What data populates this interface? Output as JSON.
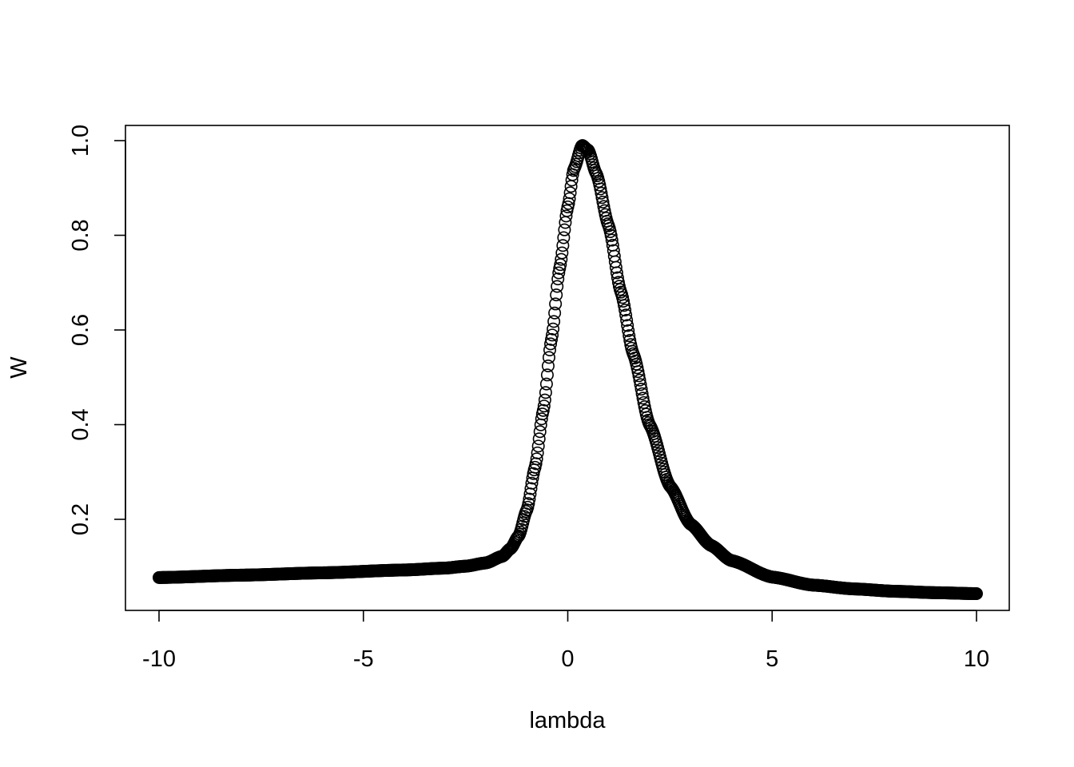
{
  "chart_data": {
    "type": "scatter",
    "title": "",
    "xlabel": "lambda",
    "ylabel": "W",
    "xlim": [
      -10,
      10
    ],
    "ylim": [
      0.02,
      1.03
    ],
    "grid": false,
    "legend": "none",
    "xticks": [
      -10,
      -5,
      0,
      5,
      10
    ],
    "xtick_labels": [
      "-10",
      "-5",
      "0",
      "5",
      "10"
    ],
    "yticks": [
      0.2,
      0.4,
      0.6,
      0.8,
      1.0
    ],
    "ytick_labels": [
      "0.2",
      "0.4",
      "0.6",
      "0.8",
      "1.0"
    ],
    "series": [
      {
        "marker": "open-circle",
        "color": "#000000",
        "x_range": [
          -10,
          10
        ],
        "n_points": 1001,
        "points": [
          [
            -10,
            0.077
          ],
          [
            -8,
            0.082
          ],
          [
            -6,
            0.087
          ],
          [
            -4,
            0.093
          ],
          [
            -3,
            0.097
          ],
          [
            -2.5,
            0.101
          ],
          [
            -2,
            0.108
          ],
          [
            -1.6,
            0.122
          ],
          [
            -1.4,
            0.138
          ],
          [
            -1.2,
            0.165
          ],
          [
            -1.0,
            0.22
          ],
          [
            -0.8,
            0.31
          ],
          [
            -0.6,
            0.43
          ],
          [
            -0.4,
            0.58
          ],
          [
            -0.2,
            0.73
          ],
          [
            0,
            0.86
          ],
          [
            0.15,
            0.94
          ],
          [
            0.35,
            0.99
          ],
          [
            0.5,
            0.98
          ],
          [
            0.7,
            0.93
          ],
          [
            1.0,
            0.82
          ],
          [
            1.3,
            0.68
          ],
          [
            1.6,
            0.55
          ],
          [
            2.0,
            0.4
          ],
          [
            2.5,
            0.27
          ],
          [
            3.0,
            0.19
          ],
          [
            3.5,
            0.145
          ],
          [
            4.0,
            0.113
          ],
          [
            5.0,
            0.078
          ],
          [
            6.0,
            0.061
          ],
          [
            7.0,
            0.053
          ],
          [
            8.0,
            0.048
          ],
          [
            9.0,
            0.045
          ],
          [
            10.0,
            0.043
          ]
        ]
      }
    ]
  }
}
